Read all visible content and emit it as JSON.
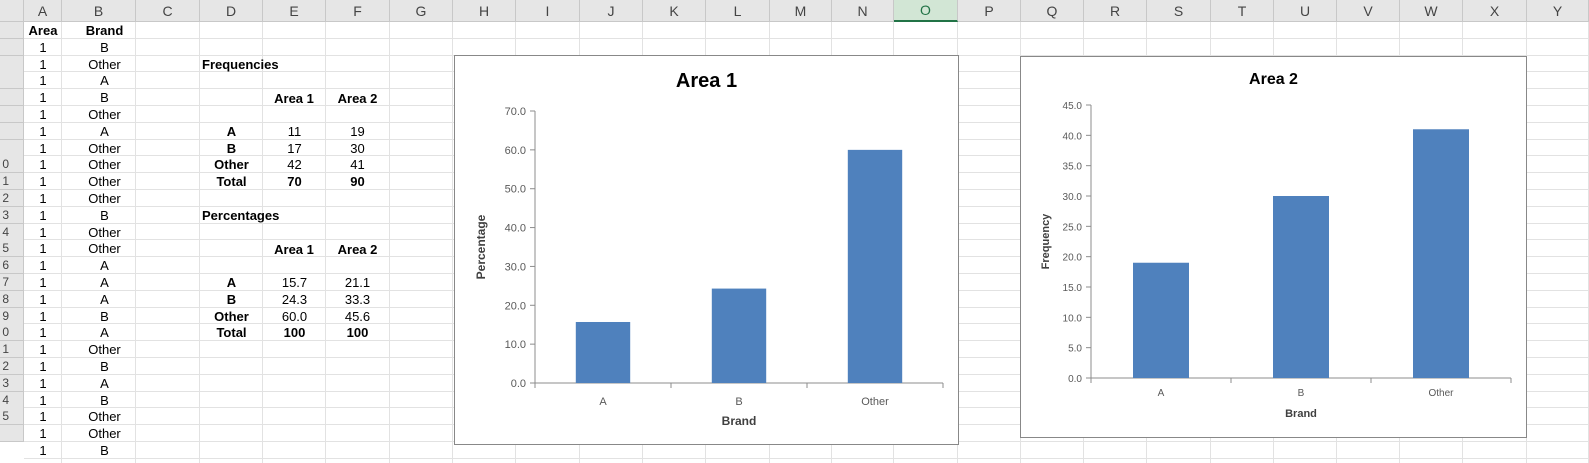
{
  "sheet": {
    "columns": [
      "A",
      "B",
      "C",
      "D",
      "E",
      "F",
      "G",
      "H",
      "I",
      "J",
      "K",
      "L",
      "M",
      "N",
      "O",
      "P",
      "Q",
      "R",
      "S",
      "T",
      "U",
      "V",
      "W",
      "X",
      "Y"
    ],
    "selected_column": "O",
    "row_numbers": [
      "",
      "",
      "",
      "",
      "",
      "",
      "",
      "",
      "0",
      "1",
      "2",
      "3",
      "4",
      "5",
      "6",
      "7",
      "8",
      "9",
      "0",
      "1",
      "2",
      "3",
      "4",
      "5",
      ""
    ],
    "headers": {
      "area": "Area",
      "brand": "Brand"
    },
    "raw_rows": [
      [
        "1",
        "B"
      ],
      [
        "1",
        "Other"
      ],
      [
        "1",
        "A"
      ],
      [
        "1",
        "B"
      ],
      [
        "1",
        "Other"
      ],
      [
        "1",
        "A"
      ],
      [
        "1",
        "Other"
      ],
      [
        "1",
        "Other"
      ],
      [
        "1",
        "Other"
      ],
      [
        "1",
        "Other"
      ],
      [
        "1",
        "B"
      ],
      [
        "1",
        "Other"
      ],
      [
        "1",
        "Other"
      ],
      [
        "1",
        "A"
      ],
      [
        "1",
        "A"
      ],
      [
        "1",
        "A"
      ],
      [
        "1",
        "B"
      ],
      [
        "1",
        "A"
      ],
      [
        "1",
        "Other"
      ],
      [
        "1",
        "B"
      ],
      [
        "1",
        "A"
      ],
      [
        "1",
        "B"
      ],
      [
        "1",
        "Other"
      ],
      [
        "1",
        "Other"
      ],
      [
        "1",
        "B"
      ]
    ]
  },
  "frequencies": {
    "title": "Frequencies",
    "col1": "Area 1",
    "col2": "Area 2",
    "rows": [
      {
        "label": "A",
        "v1": "11",
        "v2": "19"
      },
      {
        "label": "B",
        "v1": "17",
        "v2": "30"
      },
      {
        "label": "Other",
        "v1": "42",
        "v2": "41"
      },
      {
        "label": "Total",
        "v1": "70",
        "v2": "90"
      }
    ]
  },
  "percentages": {
    "title": "Percentages",
    "col1": "Area 1",
    "col2": "Area 2",
    "rows": [
      {
        "label": "A",
        "v1": "15.7",
        "v2": "21.1"
      },
      {
        "label": "B",
        "v1": "24.3",
        "v2": "33.3"
      },
      {
        "label": "Other",
        "v1": "60.0",
        "v2": "45.6"
      },
      {
        "label": "Total",
        "v1": "100",
        "v2": "100"
      }
    ]
  },
  "colors": {
    "bar": "#4f81bd",
    "grid": "#e2e2e2",
    "selected_col": "#217346"
  },
  "chart_data": [
    {
      "type": "bar",
      "title": "Area 1",
      "categories": [
        "A",
        "B",
        "Other"
      ],
      "values": [
        15.7,
        24.3,
        60.0
      ],
      "xlabel": "Brand",
      "ylabel": "Percentage",
      "ylim": [
        0,
        70
      ],
      "yticks": [
        "0.0",
        "10.0",
        "20.0",
        "30.0",
        "40.0",
        "50.0",
        "60.0",
        "70.0"
      ],
      "grid": false
    },
    {
      "type": "bar",
      "title": "Area 2",
      "categories": [
        "A",
        "B",
        "Other"
      ],
      "values": [
        19,
        30,
        41
      ],
      "xlabel": "Brand",
      "ylabel": "Frequency",
      "ylim": [
        0,
        45
      ],
      "yticks": [
        "0.0",
        "5.0",
        "10.0",
        "15.0",
        "20.0",
        "25.0",
        "30.0",
        "35.0",
        "40.0",
        "45.0"
      ],
      "grid": false
    }
  ]
}
